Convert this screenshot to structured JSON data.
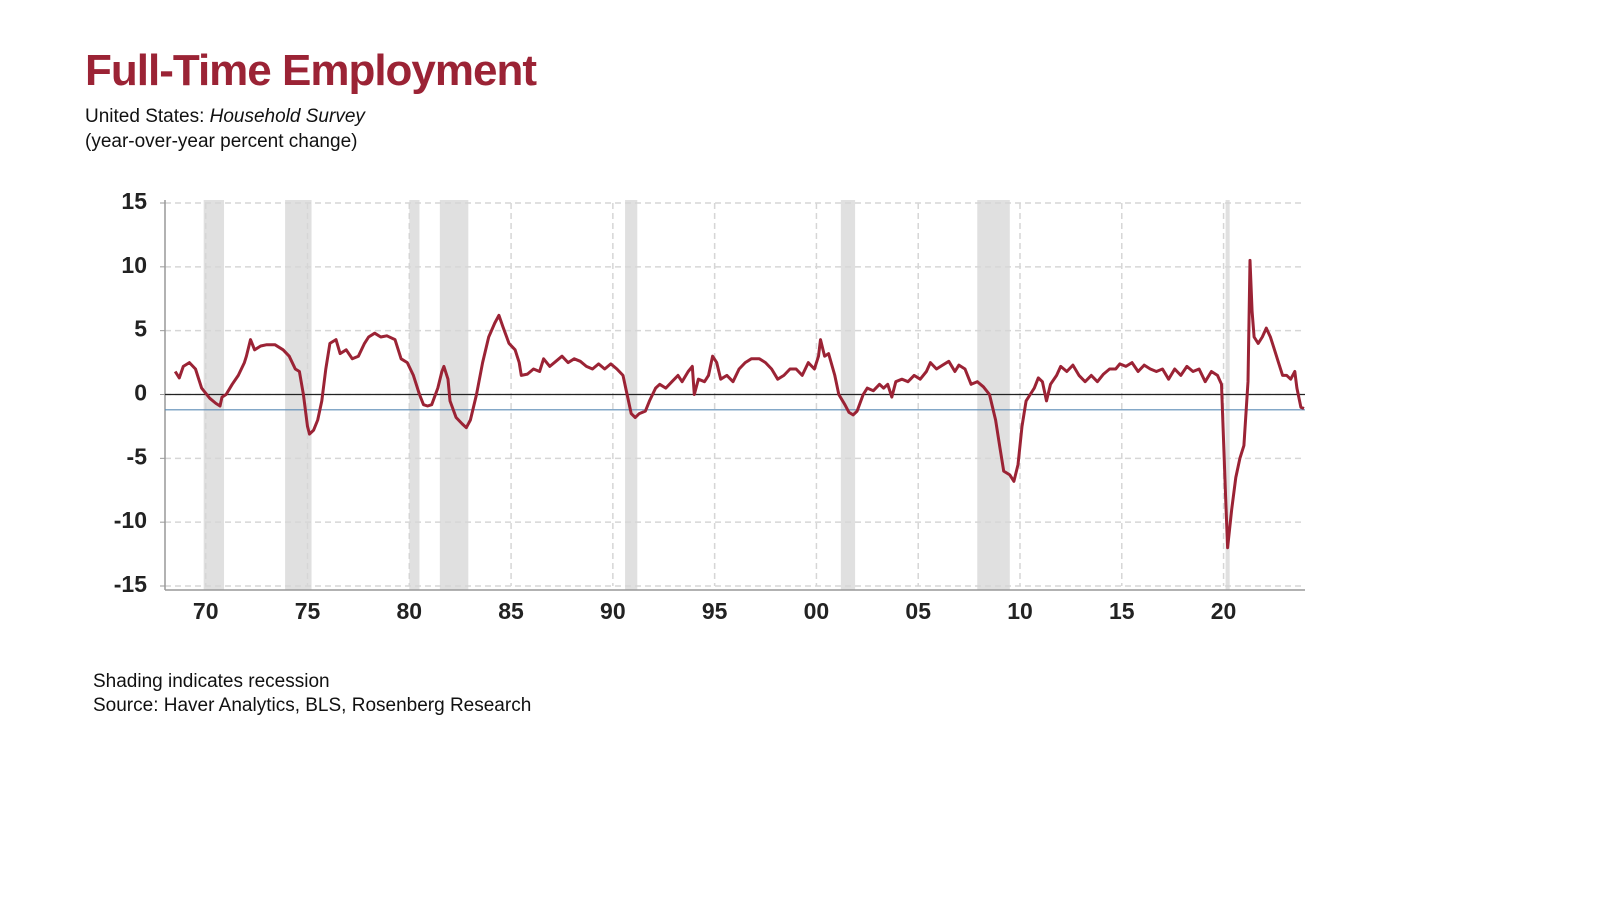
{
  "title": "Full-Time Employment",
  "subtitle_prefix": "United States:",
  "subtitle_emphasis": "Household Survey",
  "units_note": "(year-over-year percent change)",
  "footnotes": [
    "Shading indicates recession",
    "Source: Haver Analytics, BLS, Rosenberg Research"
  ],
  "chart_data": {
    "type": "line",
    "x": [
      1968.5,
      1968.7,
      1968.9,
      1969.2,
      1969.5,
      1969.8,
      1970.2,
      1970.5,
      1970.7,
      1970.8,
      1971.0,
      1971.3,
      1971.6,
      1971.9,
      1972.0,
      1972.2,
      1972.4,
      1972.7,
      1973.0,
      1973.4,
      1973.8,
      1974.1,
      1974.4,
      1974.6,
      1974.8,
      1975.0,
      1975.1,
      1975.3,
      1975.5,
      1975.7,
      1975.9,
      1976.1,
      1976.4,
      1976.6,
      1976.9,
      1977.2,
      1977.5,
      1977.8,
      1978.0,
      1978.3,
      1978.6,
      1978.9,
      1979.3,
      1979.6,
      1979.9,
      1980.2,
      1980.5,
      1980.7,
      1980.9,
      1981.1,
      1981.4,
      1981.6,
      1981.7,
      1981.9,
      1982.0,
      1982.3,
      1982.6,
      1982.8,
      1983.0,
      1983.3,
      1983.6,
      1983.9,
      1984.2,
      1984.4,
      1984.6,
      1984.9,
      1985.2,
      1985.4,
      1985.5,
      1985.8,
      1986.1,
      1986.4,
      1986.6,
      1986.9,
      1987.2,
      1987.5,
      1987.8,
      1988.1,
      1988.4,
      1988.7,
      1989.0,
      1989.3,
      1989.6,
      1989.9,
      1990.2,
      1990.5,
      1990.7,
      1990.9,
      1991.1,
      1991.3,
      1991.6,
      1991.8,
      1992.1,
      1992.3,
      1992.6,
      1992.9,
      1993.2,
      1993.4,
      1993.7,
      1993.9,
      1994.0,
      1994.2,
      1994.5,
      1994.7,
      1994.9,
      1995.1,
      1995.3,
      1995.6,
      1995.9,
      1996.2,
      1996.5,
      1996.8,
      1997.2,
      1997.5,
      1997.8,
      1998.1,
      1998.4,
      1998.7,
      1999.0,
      1999.3,
      1999.6,
      1999.9,
      2000.1,
      2000.2,
      2000.4,
      2000.6,
      2000.9,
      2001.1,
      2001.4,
      2001.6,
      2001.8,
      2002.0,
      2002.3,
      2002.5,
      2002.8,
      2003.1,
      2003.3,
      2003.5,
      2003.7,
      2003.9,
      2004.2,
      2004.5,
      2004.8,
      2005.1,
      2005.4,
      2005.6,
      2005.9,
      2006.2,
      2006.5,
      2006.8,
      2007.0,
      2007.3,
      2007.6,
      2007.9,
      2008.2,
      2008.5,
      2008.8,
      2009.0,
      2009.2,
      2009.5,
      2009.7,
      2009.9,
      2010.1,
      2010.3,
      2010.5,
      2010.7,
      2010.9,
      2011.1,
      2011.3,
      2011.5,
      2011.8,
      2012.0,
      2012.3,
      2012.6,
      2012.9,
      2013.2,
      2013.5,
      2013.8,
      2014.1,
      2014.4,
      2014.7,
      2014.9,
      2015.2,
      2015.5,
      2015.8,
      2016.1,
      2016.4,
      2016.7,
      2017.0,
      2017.3,
      2017.6,
      2017.9,
      2018.2,
      2018.5,
      2018.8,
      2019.1,
      2019.4,
      2019.7,
      2019.9,
      2020.1,
      2020.2,
      2020.4,
      2020.6,
      2020.8,
      2021.0,
      2021.2,
      2021.3,
      2021.4,
      2021.5,
      2021.7,
      2021.9,
      2022.1,
      2022.3,
      2022.5,
      2022.7,
      2022.9,
      2023.1,
      2023.3,
      2023.5,
      2023.6,
      2023.8,
      2023.95
    ],
    "series": [
      {
        "color": "#9b2335",
        "values": [
          1.8,
          1.3,
          2.2,
          2.5,
          2.0,
          0.5,
          -0.3,
          -0.7,
          -0.9,
          -0.2,
          0,
          0.8,
          1.5,
          2.5,
          3.0,
          4.3,
          3.5,
          3.8,
          3.9,
          3.9,
          3.5,
          3.0,
          2.0,
          1.8,
          0,
          -2.5,
          -3.1,
          -2.8,
          -2.0,
          -0.5,
          2.0,
          4.0,
          4.3,
          3.2,
          3.5,
          2.8,
          3.0,
          4.0,
          4.5,
          4.8,
          4.5,
          4.6,
          4.3,
          2.8,
          2.5,
          1.5,
          0,
          -0.8,
          -0.9,
          -0.8,
          0.5,
          1.8,
          2.2,
          1.2,
          -0.5,
          -1.8,
          -2.3,
          -2.6,
          -2.0,
          0,
          2.5,
          4.5,
          5.6,
          6.2,
          5.3,
          4.0,
          3.5,
          2.5,
          1.5,
          1.6,
          2.0,
          1.8,
          2.8,
          2.2,
          2.6,
          3.0,
          2.5,
          2.8,
          2.6,
          2.2,
          2.0,
          2.4,
          2.0,
          2.4,
          2.0,
          1.5,
          0,
          -1.5,
          -1.8,
          -1.5,
          -1.3,
          -0.5,
          0.5,
          0.8,
          0.5,
          1.0,
          1.5,
          1.0,
          1.8,
          2.2,
          0,
          1.2,
          1.0,
          1.5,
          3.0,
          2.5,
          1.2,
          1.5,
          1.0,
          2.0,
          2.5,
          2.8,
          2.8,
          2.5,
          2.0,
          1.2,
          1.5,
          2.0,
          2.0,
          1.5,
          2.5,
          2.0,
          3.0,
          4.3,
          3.0,
          3.2,
          1.5,
          0,
          -0.8,
          -1.4,
          -1.6,
          -1.3,
          0,
          0.5,
          0.3,
          0.8,
          0.5,
          0.8,
          -0.2,
          1.0,
          1.2,
          1.0,
          1.5,
          1.2,
          1.8,
          2.5,
          2.0,
          2.3,
          2.6,
          1.8,
          2.3,
          2.0,
          0.8,
          1.0,
          0.6,
          0,
          -2.0,
          -4.0,
          -6.0,
          -6.3,
          -6.8,
          -5.5,
          -2.5,
          -0.5,
          0,
          0.5,
          1.3,
          1.0,
          -0.5,
          0.8,
          1.5,
          2.2,
          1.8,
          2.3,
          1.5,
          1.0,
          1.5,
          1.0,
          1.6,
          2.0,
          2.0,
          2.4,
          2.2,
          2.5,
          1.8,
          2.3,
          2.0,
          1.8,
          2.0,
          1.2,
          2.0,
          1.5,
          2.2,
          1.8,
          2.0,
          1.0,
          1.8,
          1.5,
          0.8,
          -8.0,
          -12.0,
          -9.0,
          -6.5,
          -5.0,
          -4.0,
          1.0,
          10.5,
          6.5,
          4.5,
          4.0,
          4.5,
          5.2,
          4.5,
          3.5,
          2.5,
          1.5,
          1.5,
          1.2,
          1.8,
          0.5,
          -1.0,
          -1.1
        ]
      }
    ],
    "recessions": [
      [
        1969.9,
        1970.9
      ],
      [
        1973.9,
        1975.2
      ],
      [
        1980.0,
        1980.5
      ],
      [
        1981.5,
        1982.9
      ],
      [
        1990.6,
        1991.2
      ],
      [
        2001.2,
        2001.9
      ],
      [
        2007.9,
        2009.5
      ],
      [
        2020.1,
        2020.3
      ]
    ],
    "recession_color": "#e0e0e0",
    "hlines": [
      {
        "value": 0,
        "color": "#222222"
      },
      {
        "value": -1.2,
        "color": "#5b8bb5"
      }
    ],
    "xlim": [
      1968,
      2024
    ],
    "xticks": [
      {
        "value": 1970,
        "label": "70"
      },
      {
        "value": 1975,
        "label": "75"
      },
      {
        "value": 1980,
        "label": "80"
      },
      {
        "value": 1985,
        "label": "85"
      },
      {
        "value": 1990,
        "label": "90"
      },
      {
        "value": 1995,
        "label": "95"
      },
      {
        "value": 2000,
        "label": "00"
      },
      {
        "value": 2005,
        "label": "05"
      },
      {
        "value": 2010,
        "label": "10"
      },
      {
        "value": 2015,
        "label": "15"
      },
      {
        "value": 2020,
        "label": "20"
      }
    ],
    "ylim": [
      -15,
      15
    ],
    "yticks": [
      15,
      10,
      5,
      0,
      -5,
      -10,
      -15
    ],
    "grid": true
  }
}
